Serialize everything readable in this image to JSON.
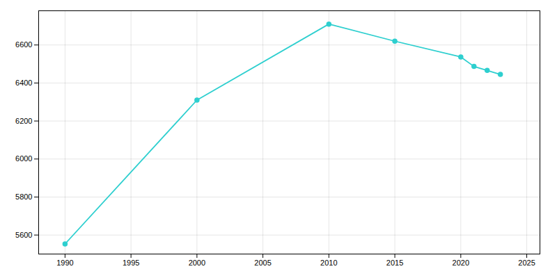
{
  "chart_data": {
    "type": "line",
    "x": [
      1990,
      2000,
      2010,
      2015,
      2020,
      2021,
      2022,
      2023
    ],
    "values": [
      5553,
      6310,
      6710,
      6620,
      6537,
      6487,
      6466,
      6445
    ],
    "color": "#2ecfcf",
    "marker": "circle",
    "xlim": [
      1988,
      2026
    ],
    "xticks": [
      1990,
      1995,
      2000,
      2005,
      2010,
      2015,
      2020,
      2025
    ],
    "ylim": [
      5500,
      6780
    ],
    "yticks": [
      5600,
      5800,
      6000,
      6200,
      6400,
      6600
    ],
    "grid": true
  }
}
